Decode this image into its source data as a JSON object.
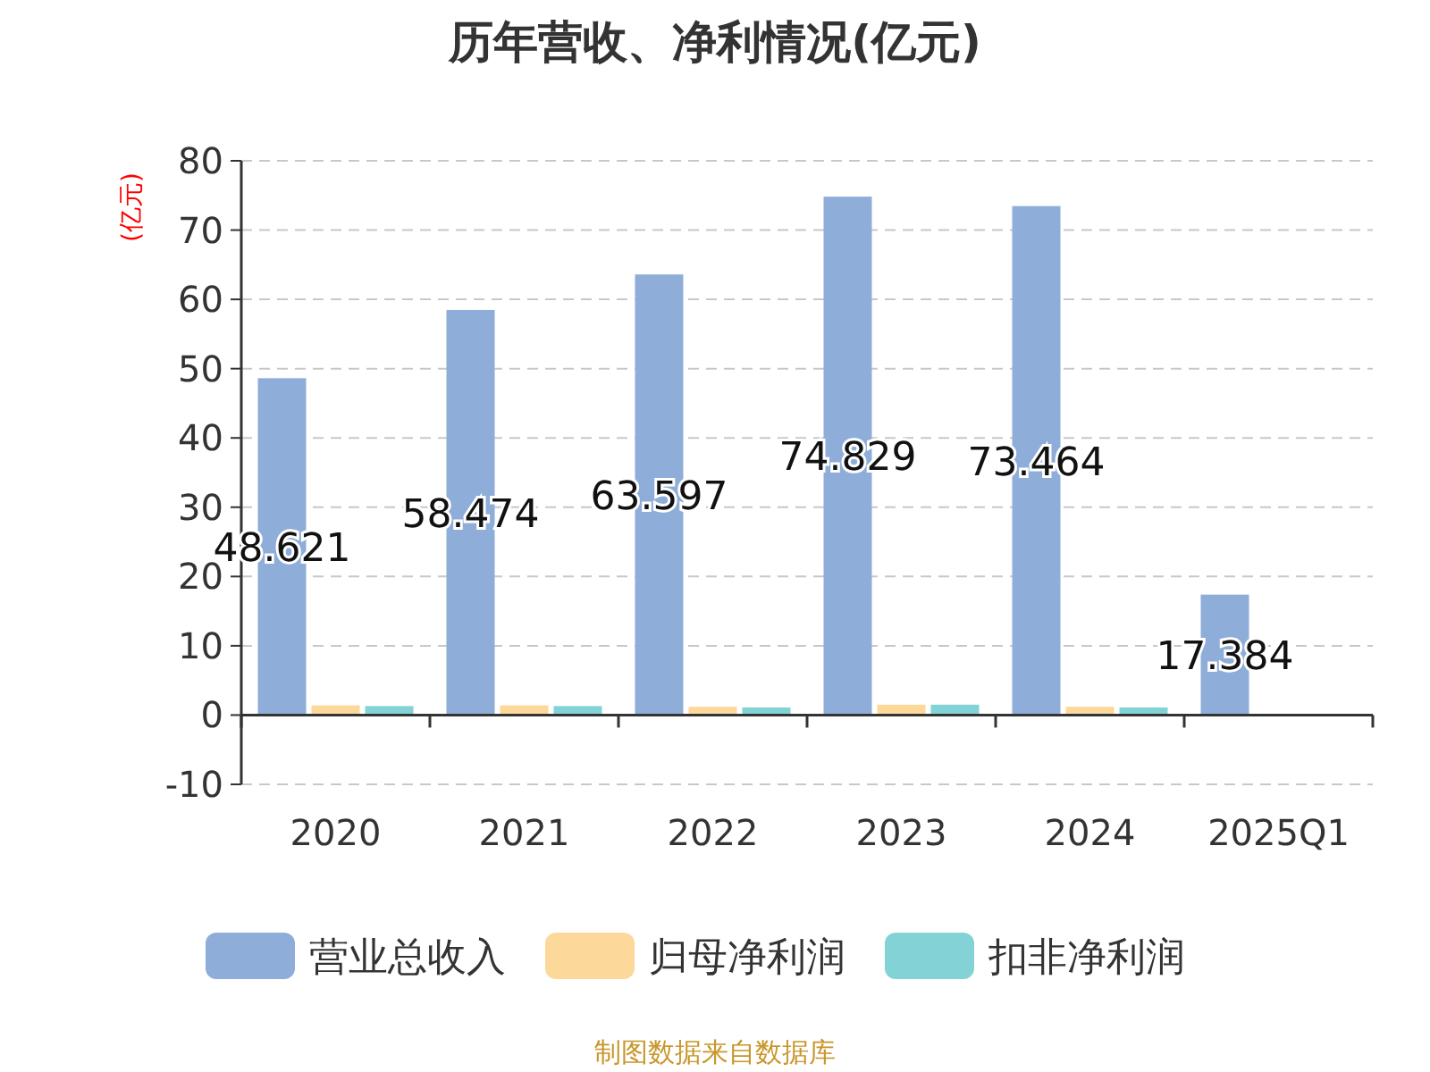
{
  "chart_data": {
    "type": "bar",
    "title": "历年营收、净利情况(亿元)",
    "ylabel": "(亿元)",
    "categories": [
      "2020",
      "2021",
      "2022",
      "2023",
      "2024",
      "2025Q1"
    ],
    "series": [
      {
        "name": "营业总收入",
        "color": "#8eadd9",
        "values": [
          48.621,
          58.474,
          63.597,
          74.829,
          73.464,
          17.384
        ],
        "value_labels": [
          "48.621",
          "58.474",
          "63.597",
          "74.829",
          "73.464",
          "17.384"
        ]
      },
      {
        "name": "归母净利润",
        "color": "#fdd89b",
        "values": [
          1.4,
          1.4,
          1.2,
          1.5,
          1.2,
          null
        ]
      },
      {
        "name": "扣非净利润",
        "color": "#83d3d6",
        "values": [
          1.3,
          1.3,
          1.1,
          1.5,
          1.1,
          null
        ]
      }
    ],
    "ylim": [
      -10,
      80
    ],
    "yticks": [
      -10,
      0,
      10,
      20,
      30,
      40,
      50,
      60,
      70,
      80
    ],
    "grid": "y",
    "legend": "bottom",
    "annotations": [
      "制图数据来自数据库"
    ]
  }
}
